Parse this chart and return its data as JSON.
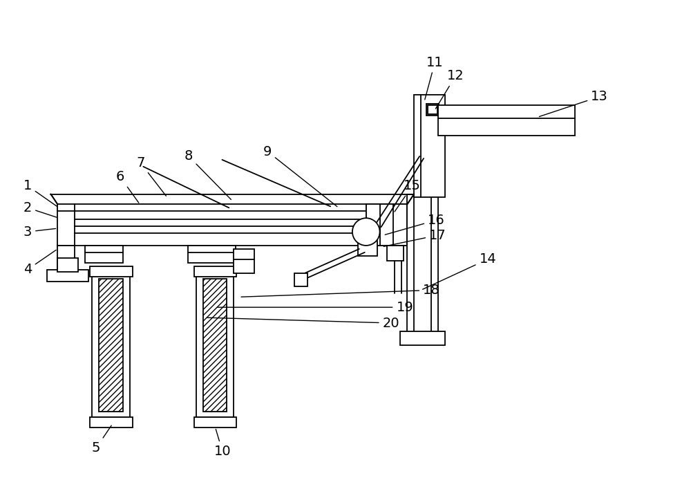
{
  "bg_color": "#ffffff",
  "line_color": "#000000",
  "fig_width": 10.0,
  "fig_height": 6.91,
  "lw": 1.3
}
